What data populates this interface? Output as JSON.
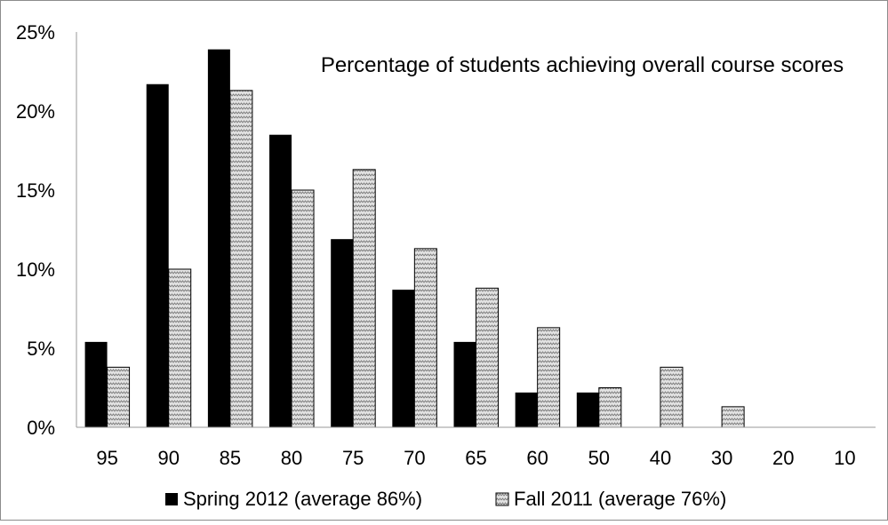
{
  "chart_data": {
    "type": "bar",
    "title": "Percentage of students achieving overall course scores",
    "xlabel": "",
    "ylabel": "",
    "categories": [
      "95",
      "90",
      "85",
      "80",
      "75",
      "70",
      "65",
      "60",
      "50",
      "40",
      "30",
      "20",
      "10"
    ],
    "series": [
      {
        "name": "Spring 2012 (average 86%)",
        "values": [
          5.4,
          21.7,
          23.9,
          18.5,
          11.9,
          8.7,
          5.4,
          2.2,
          2.2,
          0,
          0,
          0,
          0
        ],
        "color": "#000000"
      },
      {
        "name": "Fall 2011 (average 76%)",
        "values": [
          3.8,
          10.0,
          21.3,
          15.0,
          16.3,
          11.3,
          8.8,
          6.3,
          2.5,
          3.8,
          1.3,
          0,
          0
        ],
        "color": "#d9d9d9",
        "pattern": "zigzag"
      }
    ],
    "ylim": [
      0,
      25
    ],
    "yticks": [
      "0%",
      "5%",
      "10%",
      "15%",
      "20%",
      "25%"
    ],
    "grid": false,
    "legend_position": "bottom"
  }
}
